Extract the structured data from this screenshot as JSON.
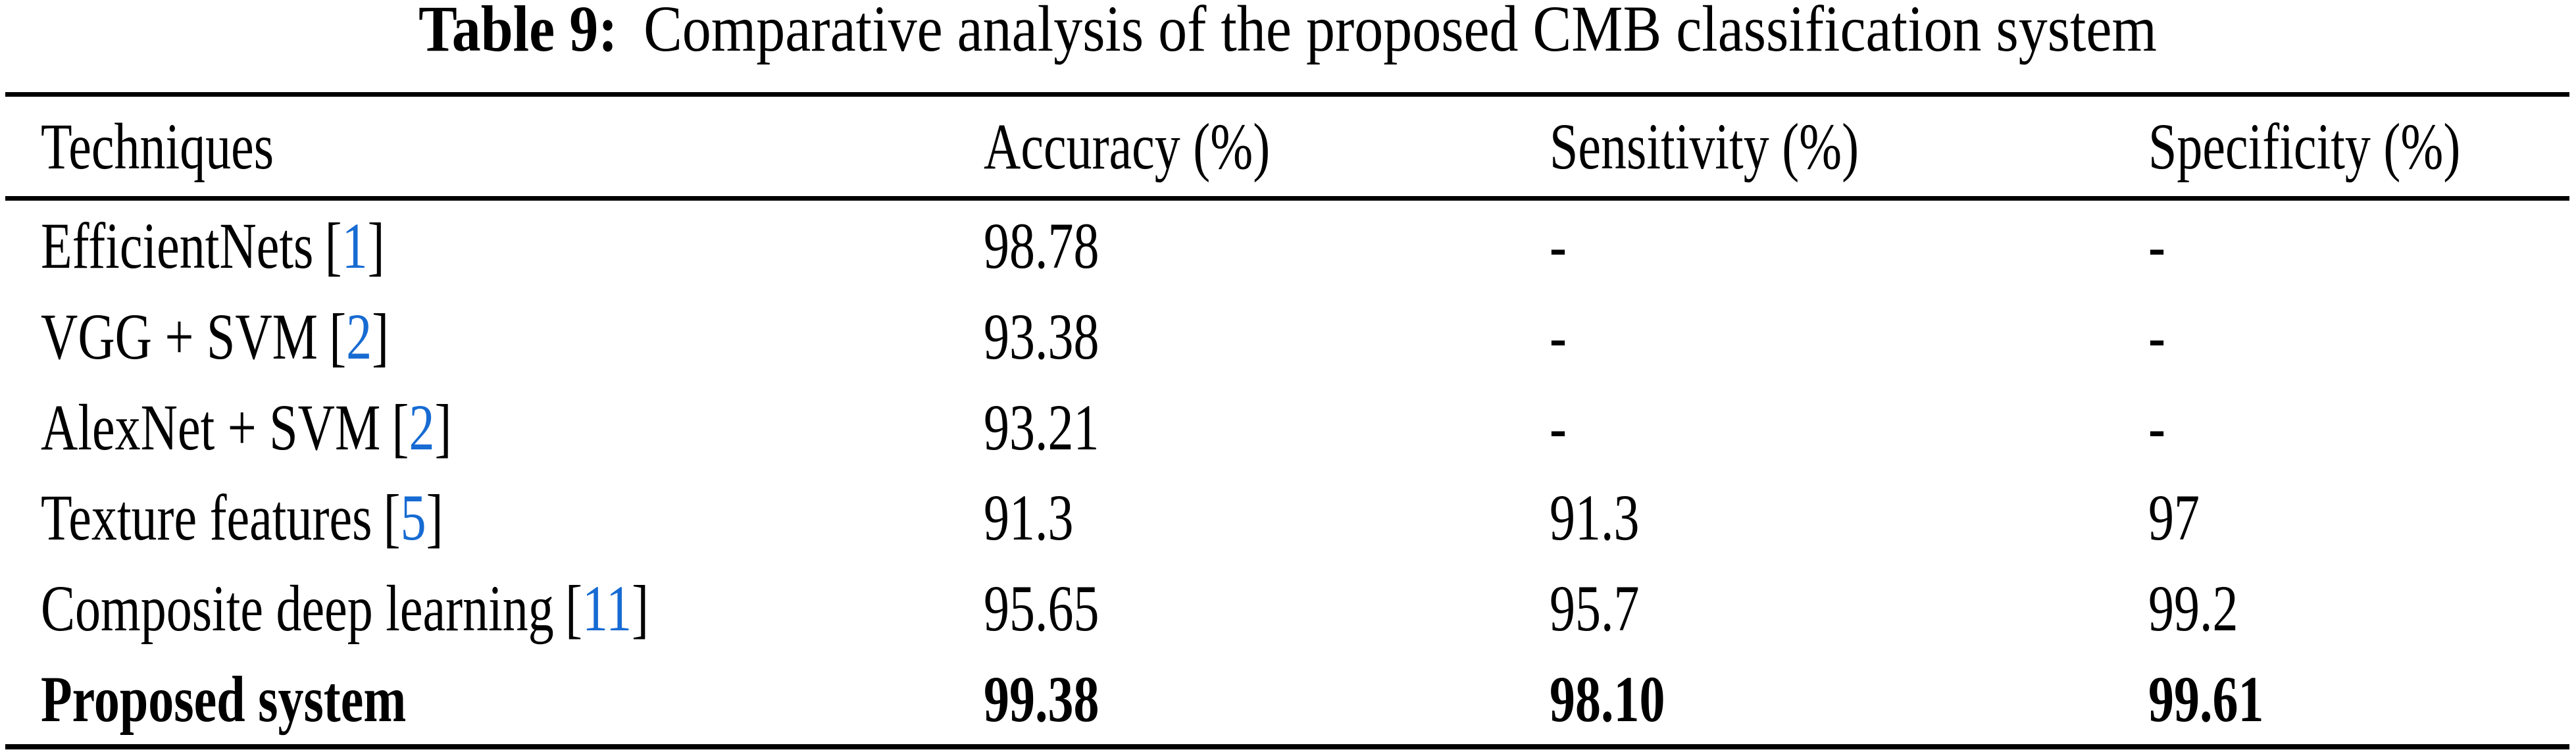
{
  "title": {
    "label": "Table 9:",
    "text": "Comparative analysis of the proposed CMB classification system"
  },
  "table": {
    "columns": [
      "Techniques",
      "Accuracy (%)",
      "Sensitivity (%)",
      "Specificity (%)"
    ],
    "cite_open": "[",
    "cite_close": "]",
    "rows": [
      {
        "technique": "EfficientNets",
        "citation": "1",
        "accuracy": "98.78",
        "sensitivity": "-",
        "specificity": "-"
      },
      {
        "technique": "VGG + SVM",
        "citation": "2",
        "accuracy": "93.38",
        "sensitivity": "-",
        "specificity": "-"
      },
      {
        "technique": "AlexNet + SVM",
        "citation": "2",
        "accuracy": "93.21",
        "sensitivity": "-",
        "specificity": "-"
      },
      {
        "technique": "Texture features",
        "citation": "5",
        "accuracy": "91.3",
        "sensitivity": "91.3",
        "specificity": "97"
      },
      {
        "technique": "Composite deep learning",
        "citation": "11",
        "accuracy": "95.65",
        "sensitivity": "95.7",
        "specificity": "99.2"
      },
      {
        "technique": "Proposed system",
        "accuracy": "99.38",
        "sensitivity": "98.10",
        "specificity": "99.61"
      }
    ]
  },
  "colors": {
    "citation_blue": "#176BD2",
    "text": "#000000",
    "rule": "#000000",
    "background": "#FFFFFF"
  }
}
